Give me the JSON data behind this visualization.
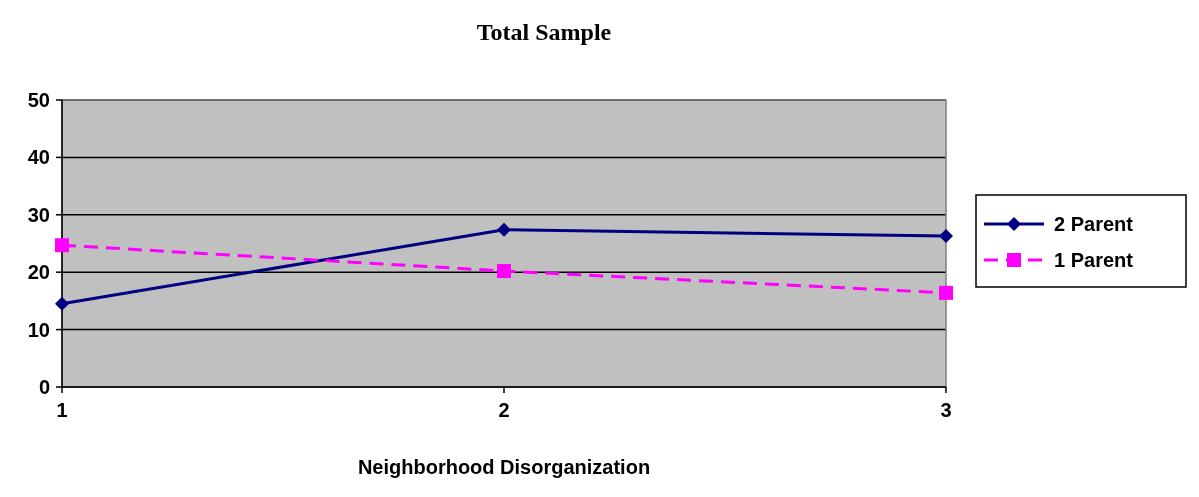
{
  "chart_data": {
    "type": "line",
    "title": "Total Sample",
    "xlabel": "Neighborhood Disorganization",
    "x": [
      1,
      2,
      3
    ],
    "xlim": [
      1,
      3
    ],
    "xticks": [
      1,
      2,
      3
    ],
    "ylim": [
      0,
      50
    ],
    "yticks": [
      0,
      10,
      20,
      30,
      40,
      50
    ],
    "grid": "y",
    "legend": "right",
    "series": [
      {
        "name": "2 Parent",
        "color": "#000080",
        "values": [
          14.5,
          27.4,
          26.3
        ],
        "marker": "diamond",
        "line_style": "solid"
      },
      {
        "name": "1 Parent",
        "color": "#ff00ff",
        "values": [
          24.7,
          20.2,
          16.4
        ],
        "marker": "square",
        "line_style": "dashed"
      }
    ]
  }
}
